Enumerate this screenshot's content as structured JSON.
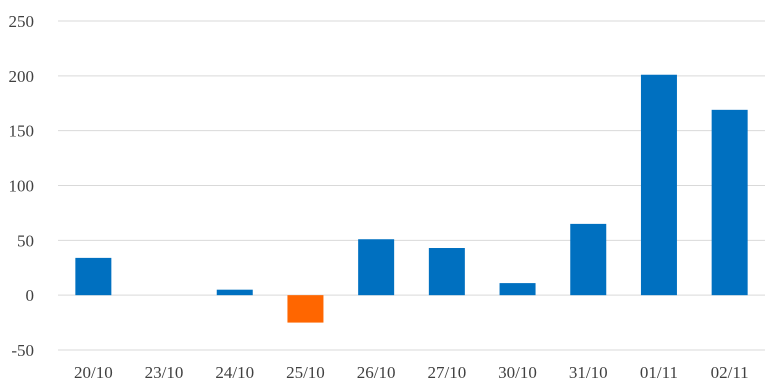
{
  "chart_data": {
    "type": "bar",
    "title": "",
    "xlabel": "",
    "ylabel": "",
    "categories": [
      "20/10",
      "23/10",
      "24/10",
      "25/10",
      "26/10",
      "27/10",
      "30/10",
      "31/10",
      "01/11",
      "02/11"
    ],
    "values": [
      34,
      0,
      5,
      -25,
      51,
      43,
      11,
      65,
      201,
      169
    ],
    "ylim": [
      -50,
      250
    ],
    "yticks": [
      -50,
      0,
      50,
      100,
      150,
      200,
      250
    ],
    "ytick_labels": [
      "-50",
      "0",
      "50",
      "100",
      "150",
      "200",
      "250"
    ],
    "grid": true,
    "legend": "none",
    "colors": {
      "positive": "#0070c0",
      "negative": "#ff6600",
      "grid": "#d9d9d9",
      "label": "#404040"
    }
  }
}
